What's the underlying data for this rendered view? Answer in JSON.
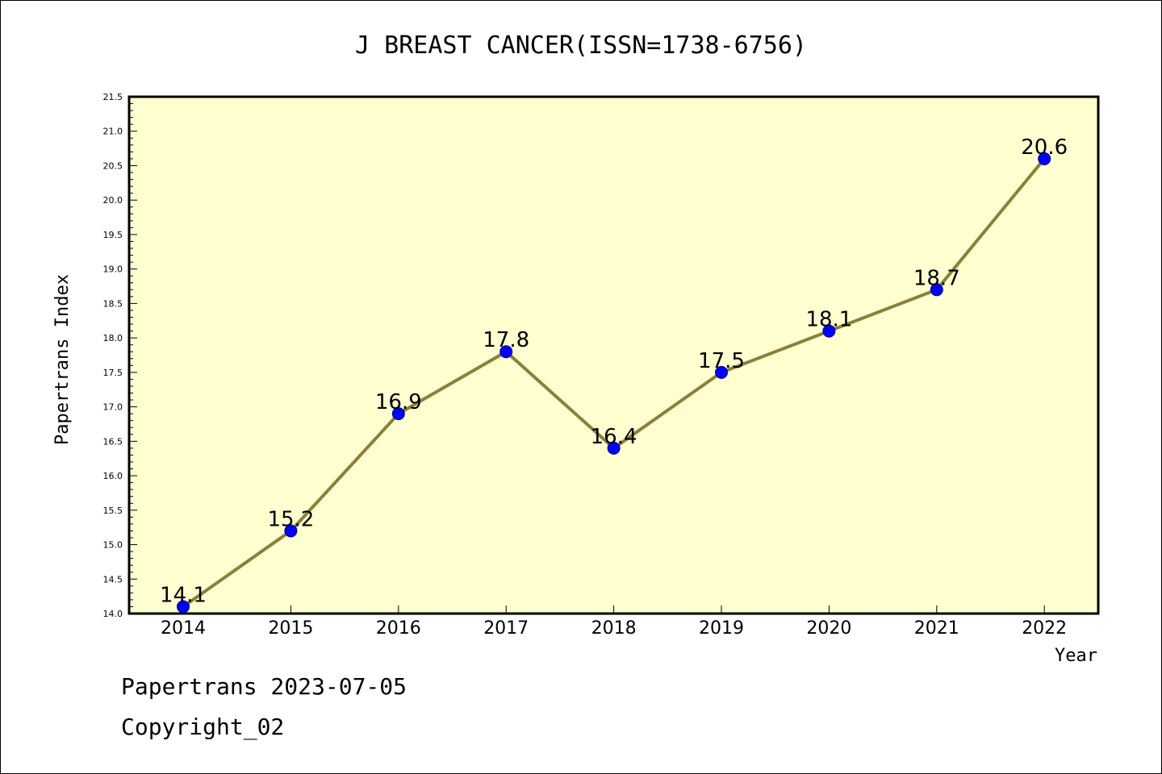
{
  "chart_data": {
    "type": "line",
    "title": "J BREAST CANCER(ISSN=1738-6756)",
    "xlabel": "Year",
    "ylabel": "Papertrans Index",
    "x": [
      "2014",
      "2015",
      "2016",
      "2017",
      "2018",
      "2019",
      "2020",
      "2021",
      "2022"
    ],
    "values": [
      14.1,
      15.2,
      16.9,
      17.8,
      16.4,
      17.5,
      18.1,
      18.7,
      20.6
    ],
    "data_labels": [
      "14.1",
      "15.2",
      "16.9",
      "17.8",
      "16.4",
      "17.5",
      "18.1",
      "18.7",
      "20.6"
    ],
    "ylim": [
      14.0,
      21.5
    ],
    "yticks": [
      "14.0",
      "14.5",
      "15.0",
      "15.5",
      "16.0",
      "16.5",
      "17.0",
      "17.5",
      "18.0",
      "18.5",
      "19.0",
      "19.5",
      "20.0",
      "20.5",
      "21.0",
      "21.5"
    ],
    "grid": false,
    "colors": {
      "plot_bg": "#ffffd0",
      "line": "#8b8038",
      "marker": "#0000ff"
    }
  },
  "footer": {
    "date_line": "Papertrans 2023-07-05",
    "copyright": "Copyright_02"
  }
}
